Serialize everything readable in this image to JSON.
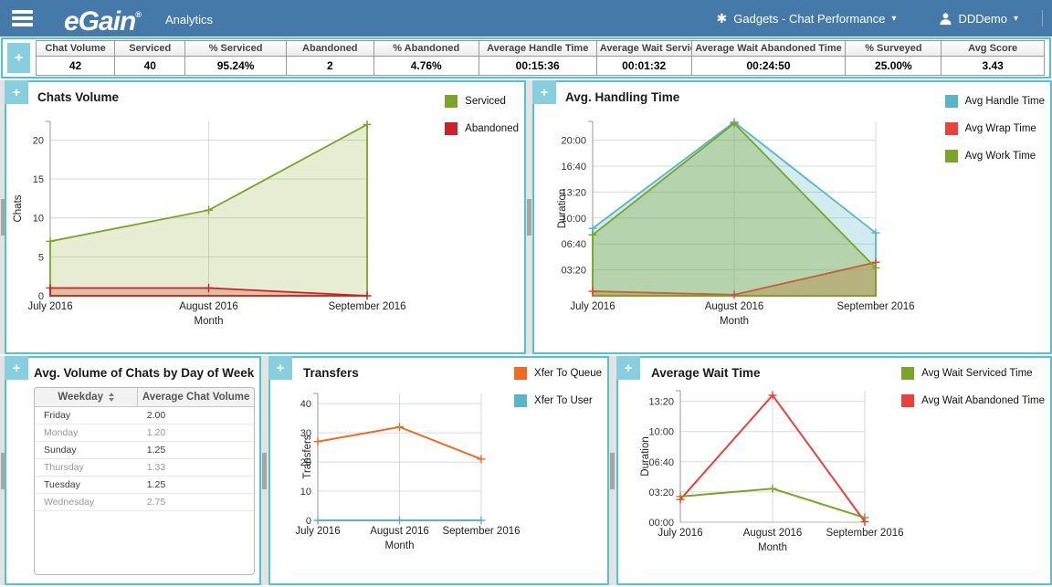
{
  "header": {
    "logo": "eGain",
    "registered": "®",
    "app_title": "Analytics",
    "gadgets_label": "Gadgets - Chat Performance",
    "user_label": "DDDemo",
    "caret": "▾",
    "gadgets_glyph": "✱",
    "plus_glyph": "+",
    "bar_color": "#4479aa",
    "panel_border_color": "#53c3ce"
  },
  "summary": {
    "columns": [
      "Chat Volume",
      "Serviced",
      "% Serviced",
      "Abandoned",
      "% Abandoned",
      "Average Handle Time",
      "Average Wait Serviced Time",
      "Average Wait Abandoned Time",
      "% Surveyed",
      "Avg Score"
    ],
    "values": [
      "42",
      "40",
      "95.24%",
      "2",
      "4.76%",
      "00:15:36",
      "00:01:32",
      "00:24:50",
      "25.00%",
      "3.43"
    ]
  },
  "chart_data": [
    {
      "id": "chats-volume",
      "type": "area",
      "title": "Chats Volume",
      "xlabel": "Month",
      "ylabel": "Chats",
      "categories": [
        "July 2016",
        "August 2016",
        "September 2016"
      ],
      "ylim": [
        0,
        22.4
      ],
      "grid": true,
      "legend_position": "right",
      "yticks": [
        {
          "v": 0,
          "label": "0"
        },
        {
          "v": 5,
          "label": "5"
        },
        {
          "v": 10,
          "label": "10"
        },
        {
          "v": 15,
          "label": "15"
        },
        {
          "v": 20,
          "label": "20"
        }
      ],
      "series": [
        {
          "name": "Serviced",
          "color": "#7BA428",
          "fill": "rgba(139,174,56,0.22)",
          "values": [
            7,
            11,
            22
          ]
        },
        {
          "name": "Abandoned",
          "color": "#CC2127",
          "fill": "rgba(198,88,45,0.30)",
          "values": [
            1,
            1,
            0
          ]
        }
      ]
    },
    {
      "id": "avg-handling-time",
      "type": "area",
      "title": "Avg. Handling Time",
      "xlabel": "Month",
      "ylabel": "Duration",
      "categories": [
        "July 2016",
        "August 2016",
        "September 2016"
      ],
      "ylim": [
        0,
        1345
      ],
      "grid": true,
      "legend_position": "right",
      "yticks": [
        {
          "v": 200,
          "label": "03:20"
        },
        {
          "v": 400,
          "label": "06:40"
        },
        {
          "v": 600,
          "label": "10:00"
        },
        {
          "v": 800,
          "label": "13:20"
        },
        {
          "v": 1000,
          "label": "16:40"
        },
        {
          "v": 1200,
          "label": "20:00"
        }
      ],
      "series": [
        {
          "name": "Avg Handle Time",
          "color": "#58B6C7",
          "fill": "rgba(88,182,199,0.28)",
          "values": [
            520,
            1340,
            485
          ],
          "values_display": [
            "08:40",
            "22:20",
            "08:05"
          ]
        },
        {
          "name": "Avg Wrap Time",
          "color": "#E8423A",
          "fill": "rgba(214,110,60,0.38)",
          "values": [
            35,
            8,
            258
          ],
          "values_display": [
            "00:35",
            "00:08",
            "04:18"
          ]
        },
        {
          "name": "Avg Work Time",
          "color": "#7BA428",
          "fill": "rgba(123,164,40,0.33)",
          "values": [
            470,
            1330,
            215
          ],
          "values_display": [
            "07:50",
            "22:10",
            "03:35"
          ]
        }
      ]
    },
    {
      "id": "weekday-volume",
      "type": "table",
      "title": "Avg. Volume of Chats by Day of Week",
      "columns": [
        "Weekday",
        "Average Chat Volume"
      ],
      "sorted_column": "Weekday",
      "rows": [
        [
          "Friday",
          "2.00"
        ],
        [
          "Monday",
          "1.20"
        ],
        [
          "Sunday",
          "1.25"
        ],
        [
          "Thursday",
          "1.33"
        ],
        [
          "Tuesday",
          "1.25"
        ],
        [
          "Wednesday",
          "2.75"
        ]
      ]
    },
    {
      "id": "transfers",
      "type": "line",
      "title": "Transfers",
      "xlabel": "Month",
      "ylabel": "Transfers",
      "categories": [
        "July 2016",
        "August 2016",
        "September 2016"
      ],
      "ylim": [
        0,
        43.5
      ],
      "grid": true,
      "legend_position": "right",
      "yticks": [
        {
          "v": 0,
          "label": "0"
        },
        {
          "v": 10,
          "label": "10"
        },
        {
          "v": 20,
          "label": "20"
        },
        {
          "v": 30,
          "label": "30"
        },
        {
          "v": 40,
          "label": "40"
        }
      ],
      "series": [
        {
          "name": "Xfer To Queue",
          "color": "#F26A21",
          "values": [
            27,
            32,
            21
          ]
        },
        {
          "name": "Xfer To User",
          "color": "#58B6C7",
          "values": [
            0,
            0,
            0
          ]
        }
      ]
    },
    {
      "id": "average-wait-time",
      "type": "line",
      "title": "Average Wait Time",
      "xlabel": "Month",
      "ylabel": "Duration",
      "categories": [
        "July 2016",
        "August 2016",
        "September 2016"
      ],
      "ylim": [
        0,
        870
      ],
      "grid": true,
      "legend_position": "right",
      "yticks": [
        {
          "v": 0,
          "label": "00:00"
        },
        {
          "v": 200,
          "label": "03:20"
        },
        {
          "v": 400,
          "label": "06:40"
        },
        {
          "v": 600,
          "label": "10:00"
        },
        {
          "v": 800,
          "label": "13:20"
        }
      ],
      "series": [
        {
          "name": "Avg Wait Serviced Time",
          "color": "#7BA428",
          "values": [
            170,
            222,
            30
          ],
          "values_display": [
            "02:50",
            "03:42",
            "00:30"
          ]
        },
        {
          "name": "Avg Wait Abandoned Time",
          "color": "#E8423A",
          "values": [
            150,
            840,
            3
          ],
          "values_display": [
            "02:30",
            "14:00",
            "00:03"
          ]
        }
      ]
    }
  ]
}
